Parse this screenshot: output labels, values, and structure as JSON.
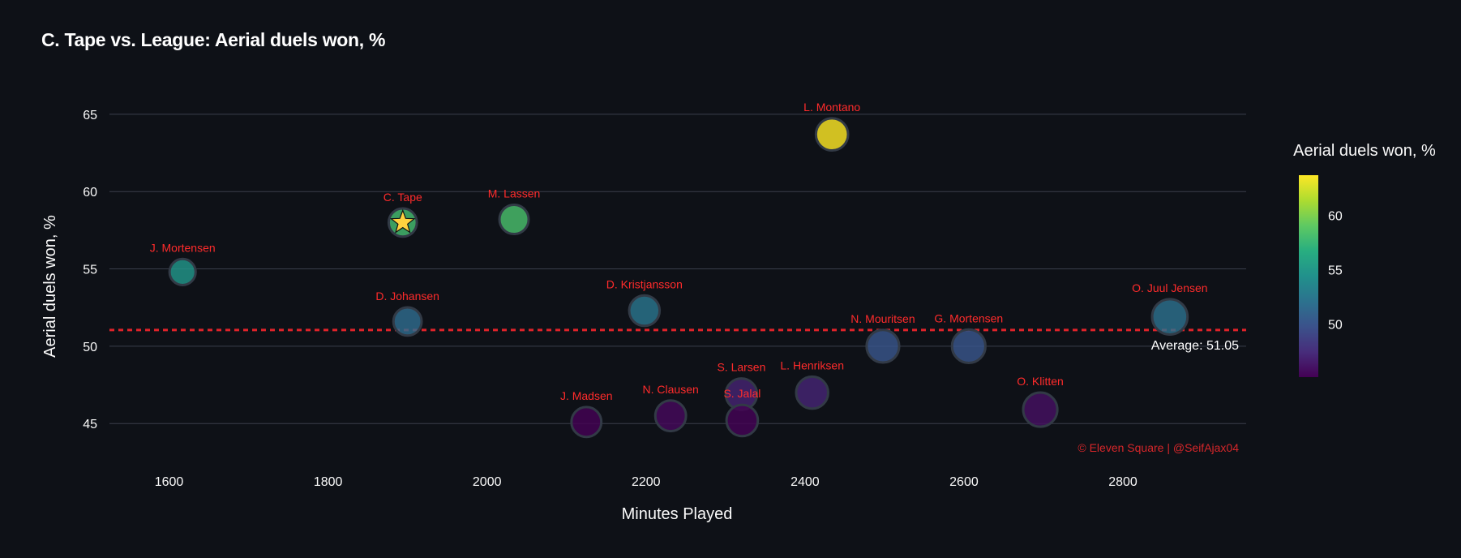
{
  "chart_data": {
    "type": "scatter",
    "title": "C. Tape vs. League: Aerial duels won, %",
    "xlabel": "Minutes Played",
    "ylabel": "Aerial duels won, %",
    "xlim": [
      1525,
      2955
    ],
    "ylim": [
      42.6,
      66.2
    ],
    "xticks": [
      1600,
      1800,
      2000,
      2200,
      2400,
      2600,
      2800
    ],
    "yticks": [
      45,
      50,
      55,
      60,
      65
    ],
    "grid": "horizontal",
    "colorscale": "viridis",
    "colorbar": {
      "title": "Aerial duels won, %",
      "range": [
        45.1,
        63.7
      ],
      "ticks": [
        50,
        55,
        60
      ]
    },
    "highlight": "C. Tape",
    "average": {
      "value": 51.05,
      "label": "Average: 51.05",
      "color": "#e0232a"
    },
    "credit": "© Eleven Square | @SeifAjax04",
    "points": [
      {
        "name": "J. Mortensen",
        "x": 1617,
        "y": 54.8
      },
      {
        "name": "C. Tape",
        "x": 1894,
        "y": 58.0
      },
      {
        "name": "D. Johansen",
        "x": 1900,
        "y": 51.6
      },
      {
        "name": "M. Lassen",
        "x": 2034,
        "y": 58.2
      },
      {
        "name": "D. Kristjansson",
        "x": 2198,
        "y": 52.3
      },
      {
        "name": "J. Madsen",
        "x": 2125,
        "y": 45.1
      },
      {
        "name": "N. Clausen",
        "x": 2231,
        "y": 45.5
      },
      {
        "name": "S. Larsen",
        "x": 2320,
        "y": 46.9
      },
      {
        "name": "S. Jalal",
        "x": 2321,
        "y": 45.2
      },
      {
        "name": "L. Henriksen",
        "x": 2409,
        "y": 47.0
      },
      {
        "name": "L. Montano",
        "x": 2434,
        "y": 63.7
      },
      {
        "name": "N. Mouritsen",
        "x": 2498,
        "y": 50.0
      },
      {
        "name": "G. Mortensen",
        "x": 2606,
        "y": 50.0
      },
      {
        "name": "O. Klitten",
        "x": 2696,
        "y": 45.9
      },
      {
        "name": "O. Juul Jensen",
        "x": 2859,
        "y": 51.9
      }
    ]
  }
}
